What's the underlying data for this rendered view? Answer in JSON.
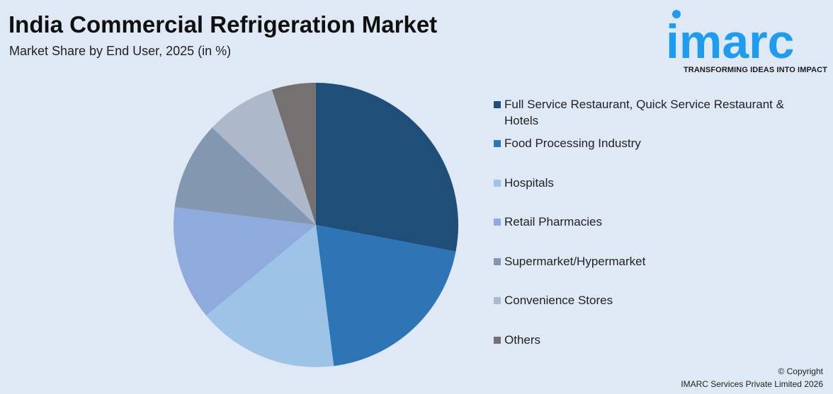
{
  "header": {
    "title": "India Commercial Refrigeration Market",
    "subtitle": "Market Share by End User, 2025 (in %)"
  },
  "brand": {
    "logo_text": "imarc",
    "tagline": "TRANSFORMING IDEAS INTO IMPACT",
    "color": "#1e9cf0"
  },
  "chart_data": {
    "type": "pie",
    "categories": [
      "Full Service Restaurant, Quick Service Restaurant & Hotels",
      "Food Processing Industry",
      "Hospitals",
      "Retail Pharmacies",
      "Supermarket/Hypermarket",
      "Convenience Stores",
      "Others"
    ],
    "values": [
      28,
      20,
      16,
      13,
      10,
      8,
      5
    ],
    "colors": [
      "#1f4e79",
      "#2e75b6",
      "#9dc3e6",
      "#8faadc",
      "#8497b0",
      "#adb9ca",
      "#767171"
    ],
    "legend_position": "right"
  },
  "footer": {
    "copyright_line1": "© Copyright",
    "copyright_line2": "IMARC Services Private Limited 2026"
  }
}
